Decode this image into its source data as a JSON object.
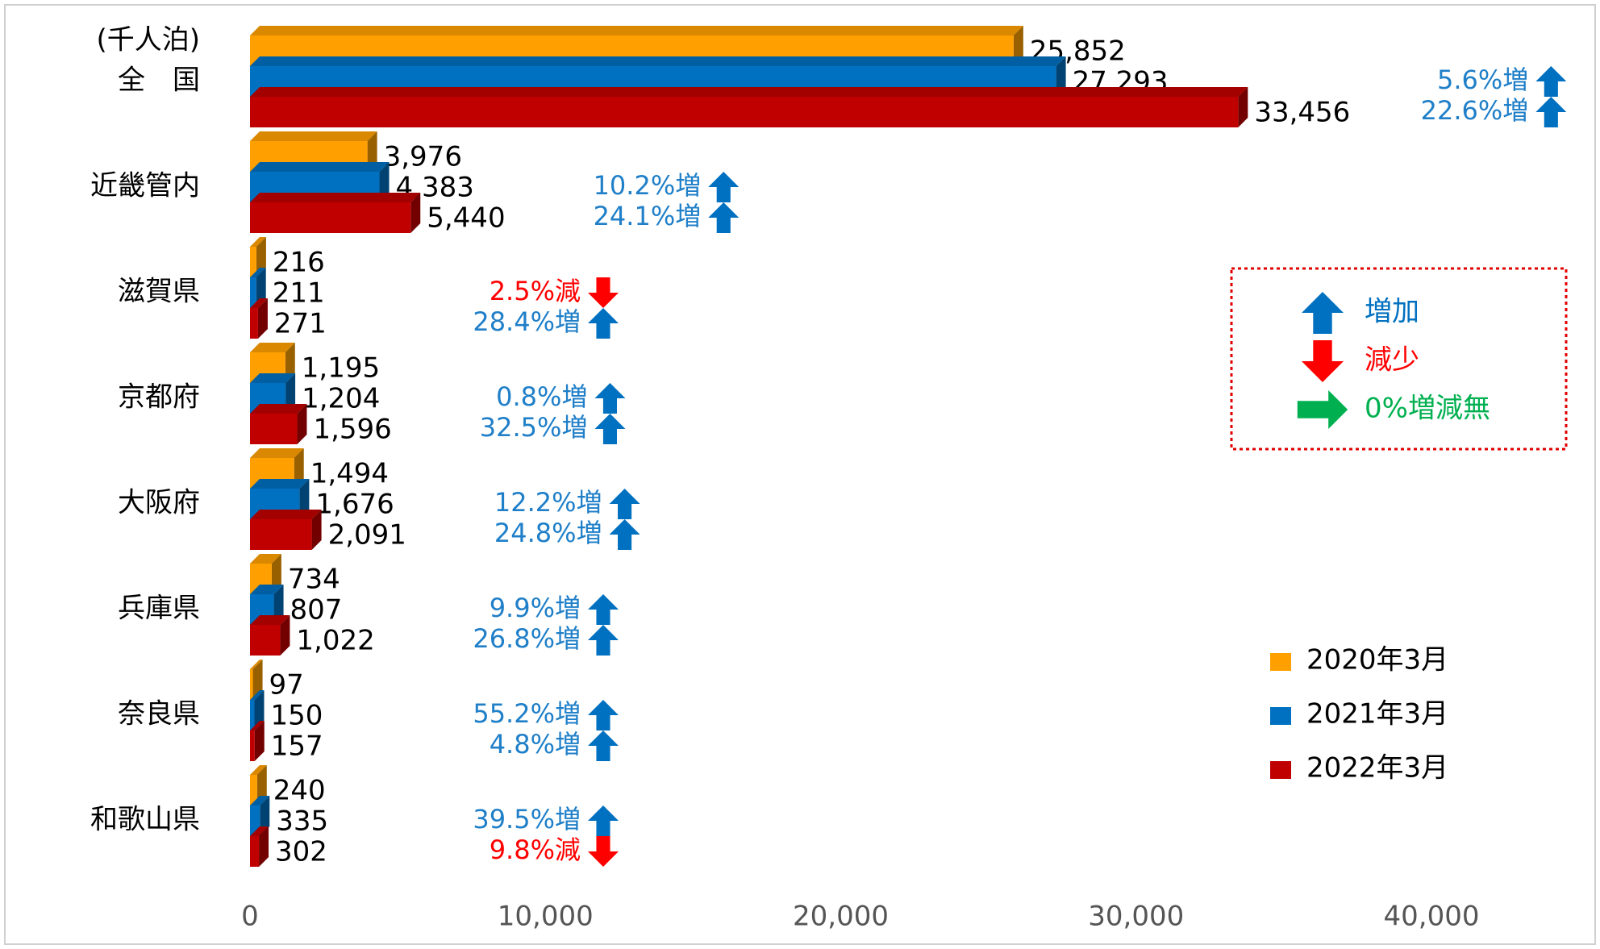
{
  "chart_data": {
    "type": "barh",
    "unit_label": "(千人泊)",
    "categories": [
      "全　国",
      "近畿管内",
      "滋賀県",
      "京都府",
      "大阪府",
      "兵庫県",
      "奈良県",
      "和歌山県"
    ],
    "series": [
      {
        "name": "2020年3月",
        "color": "#ffa000",
        "values": [
          25852,
          3976,
          216,
          1195,
          1494,
          734,
          97,
          240
        ],
        "value_labels": [
          "25,852",
          "3,976",
          "216",
          "1,195",
          "1,494",
          "734",
          "97",
          "240"
        ]
      },
      {
        "name": "2021年3月",
        "color": "#0070c0",
        "values": [
          27293,
          4383,
          211,
          1204,
          1676,
          807,
          150,
          335
        ],
        "value_labels": [
          "27,293",
          "4,383",
          "211",
          "1,204",
          "1,676",
          "807",
          "150",
          "335"
        ]
      },
      {
        "name": "2022年3月",
        "color": "#c00000",
        "values": [
          33456,
          5440,
          271,
          1596,
          2091,
          1022,
          157,
          302
        ],
        "value_labels": [
          "33,456",
          "5,440",
          "271",
          "1,596",
          "2,091",
          "1,022",
          "157",
          "302"
        ]
      }
    ],
    "annotations": [
      [
        {
          "text": "5.6%増",
          "color": "#1f7fc8",
          "arrow": "up"
        },
        {
          "text": "22.6%増",
          "color": "#1f7fc8",
          "arrow": "up"
        }
      ],
      [
        {
          "text": "10.2%増",
          "color": "#1f7fc8",
          "arrow": "up"
        },
        {
          "text": "24.1%増",
          "color": "#1f7fc8",
          "arrow": "up"
        }
      ],
      [
        {
          "text": "2.5%減",
          "color": "#ff0000",
          "arrow": "down"
        },
        {
          "text": "28.4%増",
          "color": "#1f7fc8",
          "arrow": "up"
        }
      ],
      [
        {
          "text": "0.8%増",
          "color": "#1f7fc8",
          "arrow": "up"
        },
        {
          "text": "32.5%増",
          "color": "#1f7fc8",
          "arrow": "up"
        }
      ],
      [
        {
          "text": "12.2%増",
          "color": "#1f7fc8",
          "arrow": "up"
        },
        {
          "text": "24.8%増",
          "color": "#1f7fc8",
          "arrow": "up"
        }
      ],
      [
        {
          "text": "9.9%増",
          "color": "#1f7fc8",
          "arrow": "up"
        },
        {
          "text": "26.8%増",
          "color": "#1f7fc8",
          "arrow": "up"
        }
      ],
      [
        {
          "text": "55.2%増",
          "color": "#1f7fc8",
          "arrow": "up"
        },
        {
          "text": "4.8%増",
          "color": "#1f7fc8",
          "arrow": "up"
        }
      ],
      [
        {
          "text": "39.5%増",
          "color": "#1f7fc8",
          "arrow": "up"
        },
        {
          "text": "9.8%減",
          "color": "#ff0000",
          "arrow": "down"
        }
      ]
    ],
    "arrow_legend": [
      {
        "label": "増加",
        "color": "#0070c0",
        "arrow": "up"
      },
      {
        "label": "減少",
        "color": "#ff0000",
        "arrow": "down"
      },
      {
        "label": "0%増減無",
        "color": "#00b050",
        "arrow": "right"
      }
    ],
    "xlim": [
      0,
      40000
    ],
    "xticks": [
      0,
      {
        "value": 10000,
        "label": "10,000"
      },
      {
        "value": 20000,
        "label": "20,000"
      },
      {
        "value": 30000,
        "label": "30,000"
      },
      {
        "value": 40000,
        "label": "40,000"
      }
    ],
    "grid": false
  }
}
